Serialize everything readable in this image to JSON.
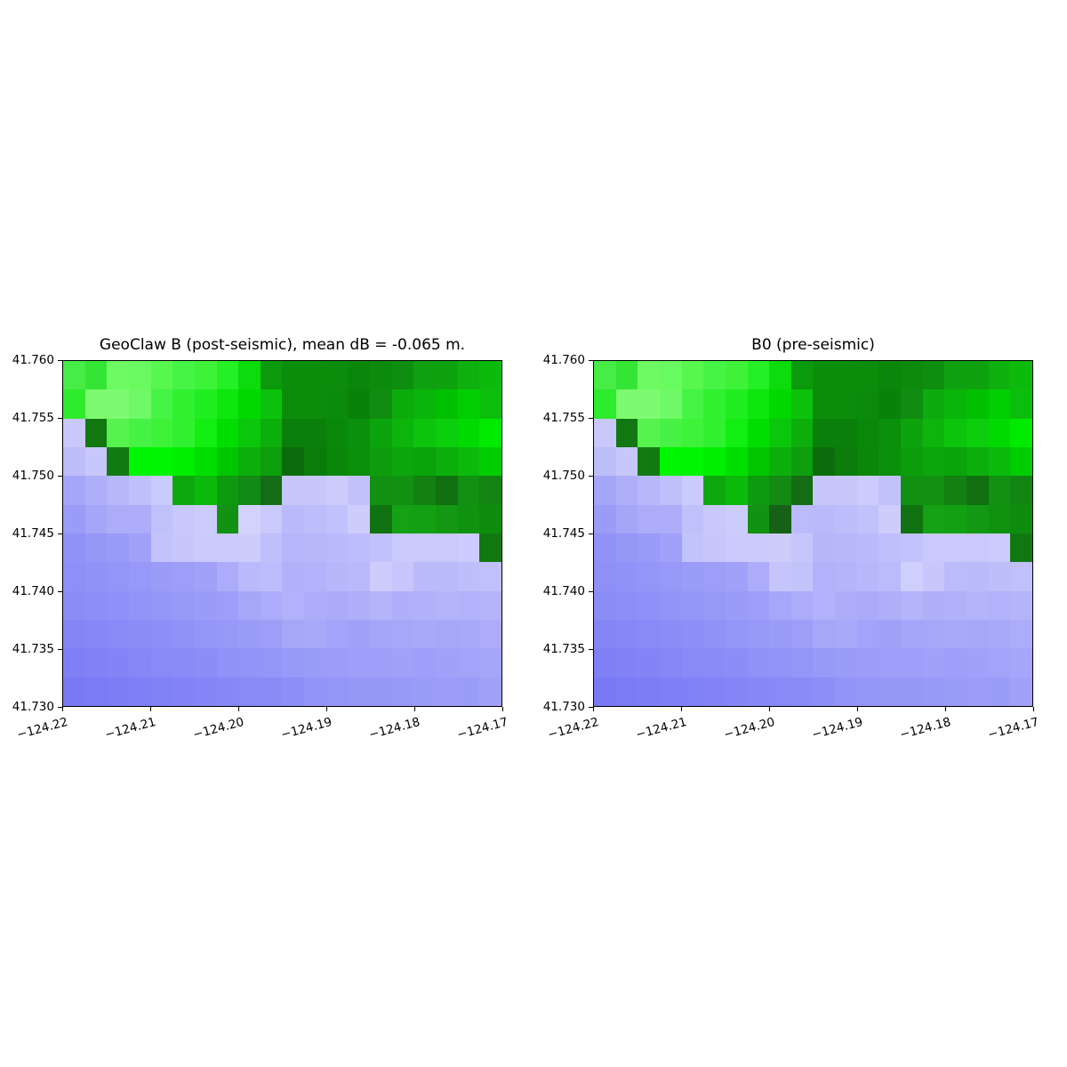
{
  "figure": {
    "background_color": "#ffffff",
    "text_color": "#000000"
  },
  "chart_data": [
    {
      "type": "heatmap",
      "title": "GeoClaw B (post-seismic), mean dB = -0.065 m.",
      "xlabel": "",
      "ylabel": "",
      "xlim": [
        -124.22,
        -124.17
      ],
      "ylim": [
        41.73,
        41.76
      ],
      "x_tick_labels": [
        "−124.22",
        "−124.21",
        "−124.20",
        "−124.19",
        "−124.18",
        "−124.17"
      ],
      "y_tick_labels": [
        "41.760",
        "41.755",
        "41.750",
        "41.745",
        "41.740",
        "41.735",
        "41.730"
      ],
      "n_cols": 20,
      "n_rows": 12,
      "grid": "off",
      "legend": "none",
      "colormap_note": "green = land (darker = higher), lavender-blue = water (darker = deeper)",
      "cell_colors": [
        [
          "#47EC47",
          "#35E535",
          "#6FFA64",
          "#69FA60",
          "#58F74F",
          "#46F446",
          "#3EF23A",
          "#25EF25",
          "#0CDC0C",
          "#0B9A0B",
          "#0B8E0B",
          "#0B8E0B",
          "#0B8C0B",
          "#0A860A",
          "#0B8A0B",
          "#0E8E0E",
          "#0FA00F",
          "#0FA20F",
          "#0DB00D",
          "#0CBA0C"
        ],
        [
          "#2DEB2D",
          "#7EFA71",
          "#7EFA71",
          "#70F966",
          "#45F445",
          "#30F130",
          "#20EE20",
          "#0EE60E",
          "#00D800",
          "#0CC20C",
          "#0B8C0B",
          "#0B8C0B",
          "#0B8A0B",
          "#0A820A",
          "#108C10",
          "#0CAC0C",
          "#0AB40A",
          "#00C000",
          "#00CE00",
          "#0CBE0C"
        ],
        [
          "#C8C8FA",
          "#117811",
          "#57F24E",
          "#45F245",
          "#3EF23A",
          "#30F030",
          "#12EE12",
          "#00DE00",
          "#0CC60C",
          "#0CAE0C",
          "#0A800A",
          "#0A800A",
          "#0A880A",
          "#0A900A",
          "#0CA40C",
          "#0CB40C",
          "#0CC40C",
          "#0CCE0C",
          "#00DA00",
          "#00EA00"
        ],
        [
          "#BDBDF9",
          "#C7C7FB",
          "#117A11",
          "#00F500",
          "#00F500",
          "#00EE00",
          "#00DE00",
          "#00C600",
          "#0CAE0C",
          "#0C9E0C",
          "#0A6C0A",
          "#0A7C0A",
          "#0A860A",
          "#0A900A",
          "#0C9C0C",
          "#0CA60C",
          "#0AA40A",
          "#0BAE0B",
          "#0BBA0B",
          "#00CC00"
        ],
        [
          "#A6A6F9",
          "#AFAFF9",
          "#B7B7FA",
          "#BFBFFB",
          "#CACAFC",
          "#0EA80E",
          "#0CBA0C",
          "#0E9A0E",
          "#138A13",
          "#146C14",
          "#C7C7FB",
          "#C7C7FB",
          "#CCCCFC",
          "#C2C2FB",
          "#119011",
          "#119011",
          "#128012",
          "#107010",
          "#129012",
          "#118411"
        ],
        [
          "#9B9BF8",
          "#A6A6F9",
          "#ACACF9",
          "#ACACF9",
          "#C0C0FB",
          "#C8C8FC",
          "#CCCCFC",
          "#129212",
          "#D2D2FD",
          "#C9C9FC",
          "#B9B9FB",
          "#BDBDFB",
          "#C1C1FB",
          "#CDCDFC",
          "#117211",
          "#14A214",
          "#13A013",
          "#129812",
          "#109210",
          "#0E8C0E"
        ],
        [
          "#9191F8",
          "#9797F8",
          "#9A9AF8",
          "#A1A1F9",
          "#C3C3FB",
          "#C7C7FC",
          "#CACAFC",
          "#CACAFC",
          "#CDCDFC",
          "#BFBFFB",
          "#B5B5FB",
          "#B7B7FB",
          "#B9B9FB",
          "#BDBDFB",
          "#C1C1FC",
          "#C9C9FC",
          "#C9C9FC",
          "#C9C9FC",
          "#CDCDFD",
          "#117811"
        ],
        [
          "#8F8FF7",
          "#9292F8",
          "#9595F8",
          "#9898F8",
          "#9B9BF8",
          "#9E9EF9",
          "#A1A1F9",
          "#ACACFA",
          "#B9B9FB",
          "#BDBDFB",
          "#B1B1FA",
          "#B3B3FB",
          "#B6B6FB",
          "#B9B9FB",
          "#CDCDFD",
          "#C6C6FC",
          "#BABAFB",
          "#BABAFB",
          "#BEBEFB",
          "#C0C0FC"
        ],
        [
          "#8C8CF7",
          "#8E8EF7",
          "#9090F8",
          "#9393F8",
          "#9595F8",
          "#9898F8",
          "#9B9BF8",
          "#9E9EF9",
          "#A7A7F9",
          "#ACACFA",
          "#B2B2FA",
          "#ADADFA",
          "#ABABFA",
          "#AFAFFA",
          "#B4B4FB",
          "#AFAFFA",
          "#B1B1FA",
          "#B4B4FB",
          "#B2B2FA",
          "#B4B4FB"
        ],
        [
          "#8585F6",
          "#8787F7",
          "#8989F7",
          "#8C8CF7",
          "#8E8EF7",
          "#9191F8",
          "#9696F8",
          "#9898F8",
          "#9B9BF8",
          "#9E9EF9",
          "#A7A7F9",
          "#A9A9FA",
          "#A3A3F9",
          "#A1A1F9",
          "#A5A5F9",
          "#A7A7F9",
          "#A9A9FA",
          "#A7A7F9",
          "#A9A9FA",
          "#ACACFA"
        ],
        [
          "#8080F6",
          "#8282F6",
          "#8484F6",
          "#8686F7",
          "#8989F7",
          "#8B8BF7",
          "#8D8DF7",
          "#9191F8",
          "#9393F8",
          "#9595F8",
          "#9999F8",
          "#9B9BF8",
          "#9D9DF9",
          "#9F9FF9",
          "#9F9FF9",
          "#A1A1F9",
          "#9F9FF9",
          "#A1A1F9",
          "#A3A3F9",
          "#A5A5F9"
        ],
        [
          "#7979F5",
          "#7B7BF6",
          "#7D7DF6",
          "#7F7FF6",
          "#8181F6",
          "#8383F6",
          "#8585F7",
          "#8787F7",
          "#8989F7",
          "#8B8BF7",
          "#8E8EF7",
          "#9393F8",
          "#9595F8",
          "#9797F8",
          "#9797F8",
          "#9999F8",
          "#9B9BF8",
          "#9D9DF9",
          "#9B9BF8",
          "#A1A1F9"
        ]
      ]
    },
    {
      "type": "heatmap",
      "title": "B0 (pre-seismic)",
      "xlabel": "",
      "ylabel": "",
      "xlim": [
        -124.22,
        -124.17
      ],
      "ylim": [
        41.73,
        41.76
      ],
      "x_tick_labels": [
        "−124.22",
        "−124.21",
        "−124.20",
        "−124.19",
        "−124.18",
        "−124.17"
      ],
      "y_tick_labels": [
        "41.760",
        "41.755",
        "41.750",
        "41.745",
        "41.740",
        "41.735",
        "41.730"
      ],
      "n_cols": 20,
      "n_rows": 12,
      "grid": "off",
      "legend": "none",
      "colormap_note": "green = land (darker = higher), lavender-blue = water (darker = deeper)",
      "cell_colors": [
        [
          "#47EC47",
          "#35E535",
          "#6FFA64",
          "#69FA60",
          "#58F74F",
          "#46F446",
          "#3EF23A",
          "#25EF25",
          "#0CDC0C",
          "#0B9A0B",
          "#0B8E0B",
          "#0B8E0B",
          "#0B8C0B",
          "#0A860A",
          "#0B8A0B",
          "#0E8E0E",
          "#0FA00F",
          "#0FA20F",
          "#0DB00D",
          "#0CBA0C"
        ],
        [
          "#2DEB2D",
          "#7EFA71",
          "#7EFA71",
          "#70F966",
          "#45F445",
          "#30F130",
          "#20EE20",
          "#0EE60E",
          "#00D800",
          "#0CC20C",
          "#0B8C0B",
          "#0B8C0B",
          "#0B8A0B",
          "#0A820A",
          "#108C10",
          "#0CAC0C",
          "#0AB40A",
          "#00C000",
          "#00CE00",
          "#0CBE0C"
        ],
        [
          "#C8C8FA",
          "#117811",
          "#57F24E",
          "#45F245",
          "#3EF23A",
          "#30F030",
          "#12EE12",
          "#00DE00",
          "#0CC60C",
          "#0CAE0C",
          "#0A800A",
          "#0A800A",
          "#0A880A",
          "#0A900A",
          "#0CA40C",
          "#0CB40C",
          "#0CC40C",
          "#0CCE0C",
          "#00DA00",
          "#00EA00"
        ],
        [
          "#BDBDF9",
          "#C7C7FB",
          "#117A11",
          "#00F500",
          "#00F500",
          "#00EE00",
          "#00DE00",
          "#00C600",
          "#0CAE0C",
          "#0C9E0C",
          "#0A6C0A",
          "#0A7C0A",
          "#0A860A",
          "#0A900A",
          "#0C9C0C",
          "#0CA60C",
          "#0AA40A",
          "#0BAE0B",
          "#0BBA0B",
          "#00CC00"
        ],
        [
          "#A6A6F9",
          "#AFAFF9",
          "#B7B7FA",
          "#BFBFFB",
          "#CACAFC",
          "#0EA80E",
          "#0CBA0C",
          "#0E9A0E",
          "#138A13",
          "#146C14",
          "#C7C7FB",
          "#C7C7FB",
          "#CCCCFC",
          "#C2C2FB",
          "#119011",
          "#119011",
          "#128012",
          "#107010",
          "#129012",
          "#118411"
        ],
        [
          "#9B9BF8",
          "#A6A6F9",
          "#ACACF9",
          "#ACACF9",
          "#C0C0FB",
          "#C8C8FC",
          "#CCCCFC",
          "#129212",
          "#176017",
          "#BBBBFC",
          "#B9B9FB",
          "#BDBDFB",
          "#C1C1FB",
          "#CDCDFC",
          "#117211",
          "#14A214",
          "#13A013",
          "#129812",
          "#109210",
          "#0E8C0E"
        ],
        [
          "#9191F8",
          "#9797F8",
          "#9A9AF8",
          "#A1A1F9",
          "#C3C3FB",
          "#C7C7FC",
          "#CACAFC",
          "#CACAFC",
          "#CDCDFC",
          "#C6C6FD",
          "#B6B6FB",
          "#B7B7FB",
          "#B9B9FB",
          "#BFBFFC",
          "#C2C2FC",
          "#C9C9FD",
          "#C9C9FD",
          "#C9C9FD",
          "#CBCBFD",
          "#117811"
        ],
        [
          "#8F8FF7",
          "#9292F8",
          "#9595F8",
          "#9898F8",
          "#9B9BF8",
          "#9E9EF9",
          "#A1A1F9",
          "#ACACFA",
          "#C5C5FC",
          "#C3C3FC",
          "#B2B2FB",
          "#B4B4FB",
          "#B7B7FB",
          "#BBBBFB",
          "#CFCFFD",
          "#C7C7FD",
          "#BBBBFB",
          "#BABAFB",
          "#BEBEFB",
          "#C0C0FC"
        ],
        [
          "#8C8CF7",
          "#8E8EF7",
          "#9090F8",
          "#9393F8",
          "#9595F8",
          "#9898F8",
          "#9B9BF8",
          "#9E9EF9",
          "#A7A7F9",
          "#ACACFA",
          "#B2B2FA",
          "#ADADFA",
          "#ABABFA",
          "#AFAFFA",
          "#B4B4FB",
          "#AFAFFA",
          "#B1B1FA",
          "#B4B4FB",
          "#B2B2FA",
          "#B4B4FB"
        ],
        [
          "#8585F6",
          "#8787F7",
          "#8989F7",
          "#8C8CF7",
          "#8E8EF7",
          "#9191F8",
          "#9696F8",
          "#9898F8",
          "#9B9BF8",
          "#9E9EF9",
          "#A7A7F9",
          "#A9A9FA",
          "#A3A3F9",
          "#A1A1F9",
          "#A5A5F9",
          "#A7A7F9",
          "#A9A9FA",
          "#A7A7F9",
          "#A9A9FA",
          "#ACACFA"
        ],
        [
          "#8080F6",
          "#8282F6",
          "#8484F6",
          "#8686F7",
          "#8989F7",
          "#8B8BF7",
          "#8D8DF7",
          "#9191F8",
          "#9393F8",
          "#9595F8",
          "#9999F8",
          "#9B9BF8",
          "#9D9DF9",
          "#9F9FF9",
          "#9F9FF9",
          "#A1A1F9",
          "#9F9FF9",
          "#A1A1F9",
          "#A3A3F9",
          "#A5A5F9"
        ],
        [
          "#7979F5",
          "#7B7BF6",
          "#7D7DF6",
          "#7F7FF6",
          "#8181F6",
          "#8383F6",
          "#8585F7",
          "#8787F7",
          "#8989F7",
          "#8B8BF7",
          "#8E8EF7",
          "#9393F8",
          "#9595F8",
          "#9797F8",
          "#9797F8",
          "#9999F8",
          "#9B9BF8",
          "#9D9DF9",
          "#9B9BF8",
          "#A1A1F9"
        ]
      ]
    }
  ]
}
